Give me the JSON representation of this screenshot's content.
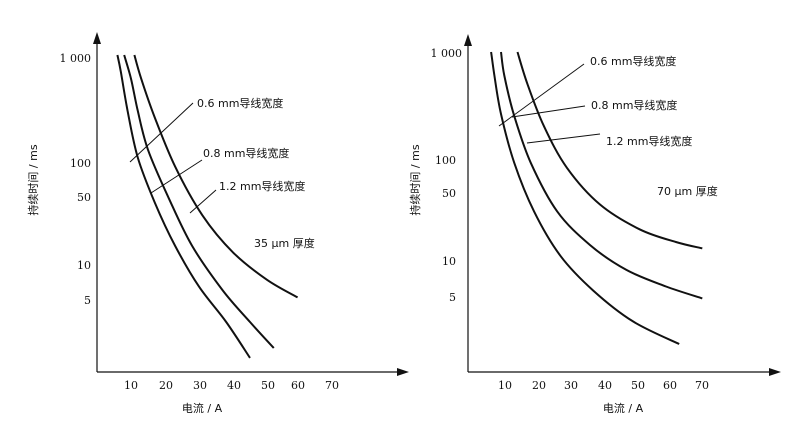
{
  "chart_data": [
    {
      "type": "line",
      "xlabel": "电流 / A",
      "ylabel": "持续时间 / ms",
      "x_ticks": [
        10,
        20,
        30,
        40,
        50,
        60,
        70
      ],
      "y_ticks": [
        5,
        10,
        50,
        100,
        "1 000"
      ],
      "y_scale": "log",
      "xlim": [
        0,
        75
      ],
      "annotation": "35 μm 厚度",
      "series": [
        {
          "name": "0.6 mm导线宽度",
          "x": [
            6,
            7,
            9,
            12,
            17,
            23,
            30,
            38,
            45
          ],
          "y": [
            1000,
            700,
            300,
            110,
            40,
            15,
            6,
            2.7,
            1.2
          ]
        },
        {
          "name": "0.8 mm导线宽度",
          "x": [
            8,
            10,
            12,
            15,
            21,
            28,
            37,
            45,
            52
          ],
          "y": [
            1000,
            600,
            300,
            130,
            45,
            15,
            5.5,
            2.7,
            1.5
          ]
        },
        {
          "name": "1.2 mm导线宽度",
          "x": [
            11,
            13,
            17,
            23,
            31,
            40,
            50,
            59
          ],
          "y": [
            1000,
            600,
            260,
            90,
            30,
            13,
            7,
            4.7
          ]
        }
      ]
    },
    {
      "type": "line",
      "xlabel": "电流 / A",
      "ylabel": "持续时间 / ms",
      "x_ticks": [
        10,
        20,
        30,
        40,
        50,
        60,
        70
      ],
      "y_ticks": [
        5,
        10,
        50,
        100,
        "1 000"
      ],
      "y_scale": "log",
      "xlim": [
        0,
        75
      ],
      "annotation": "70 μm 厚度",
      "series": [
        {
          "name": "0.6 mm导线宽度",
          "x": [
            7,
            8,
            10,
            14,
            20,
            28,
            38,
            50,
            64
          ],
          "y": [
            1000,
            600,
            260,
            90,
            30,
            11,
            5,
            2.5,
            1.5
          ]
        },
        {
          "name": "0.8 mm导线宽度",
          "x": [
            10,
            11,
            14,
            19,
            27,
            37,
            48,
            60,
            71
          ],
          "y": [
            1000,
            600,
            250,
            90,
            30,
            14,
            8,
            5.5,
            4.2
          ]
        },
        {
          "name": "1.2 mm导线宽度",
          "x": [
            15,
            18,
            23,
            30,
            40,
            52,
            63,
            71
          ],
          "y": [
            1000,
            500,
            200,
            80,
            35,
            20,
            15,
            13
          ]
        }
      ]
    }
  ]
}
